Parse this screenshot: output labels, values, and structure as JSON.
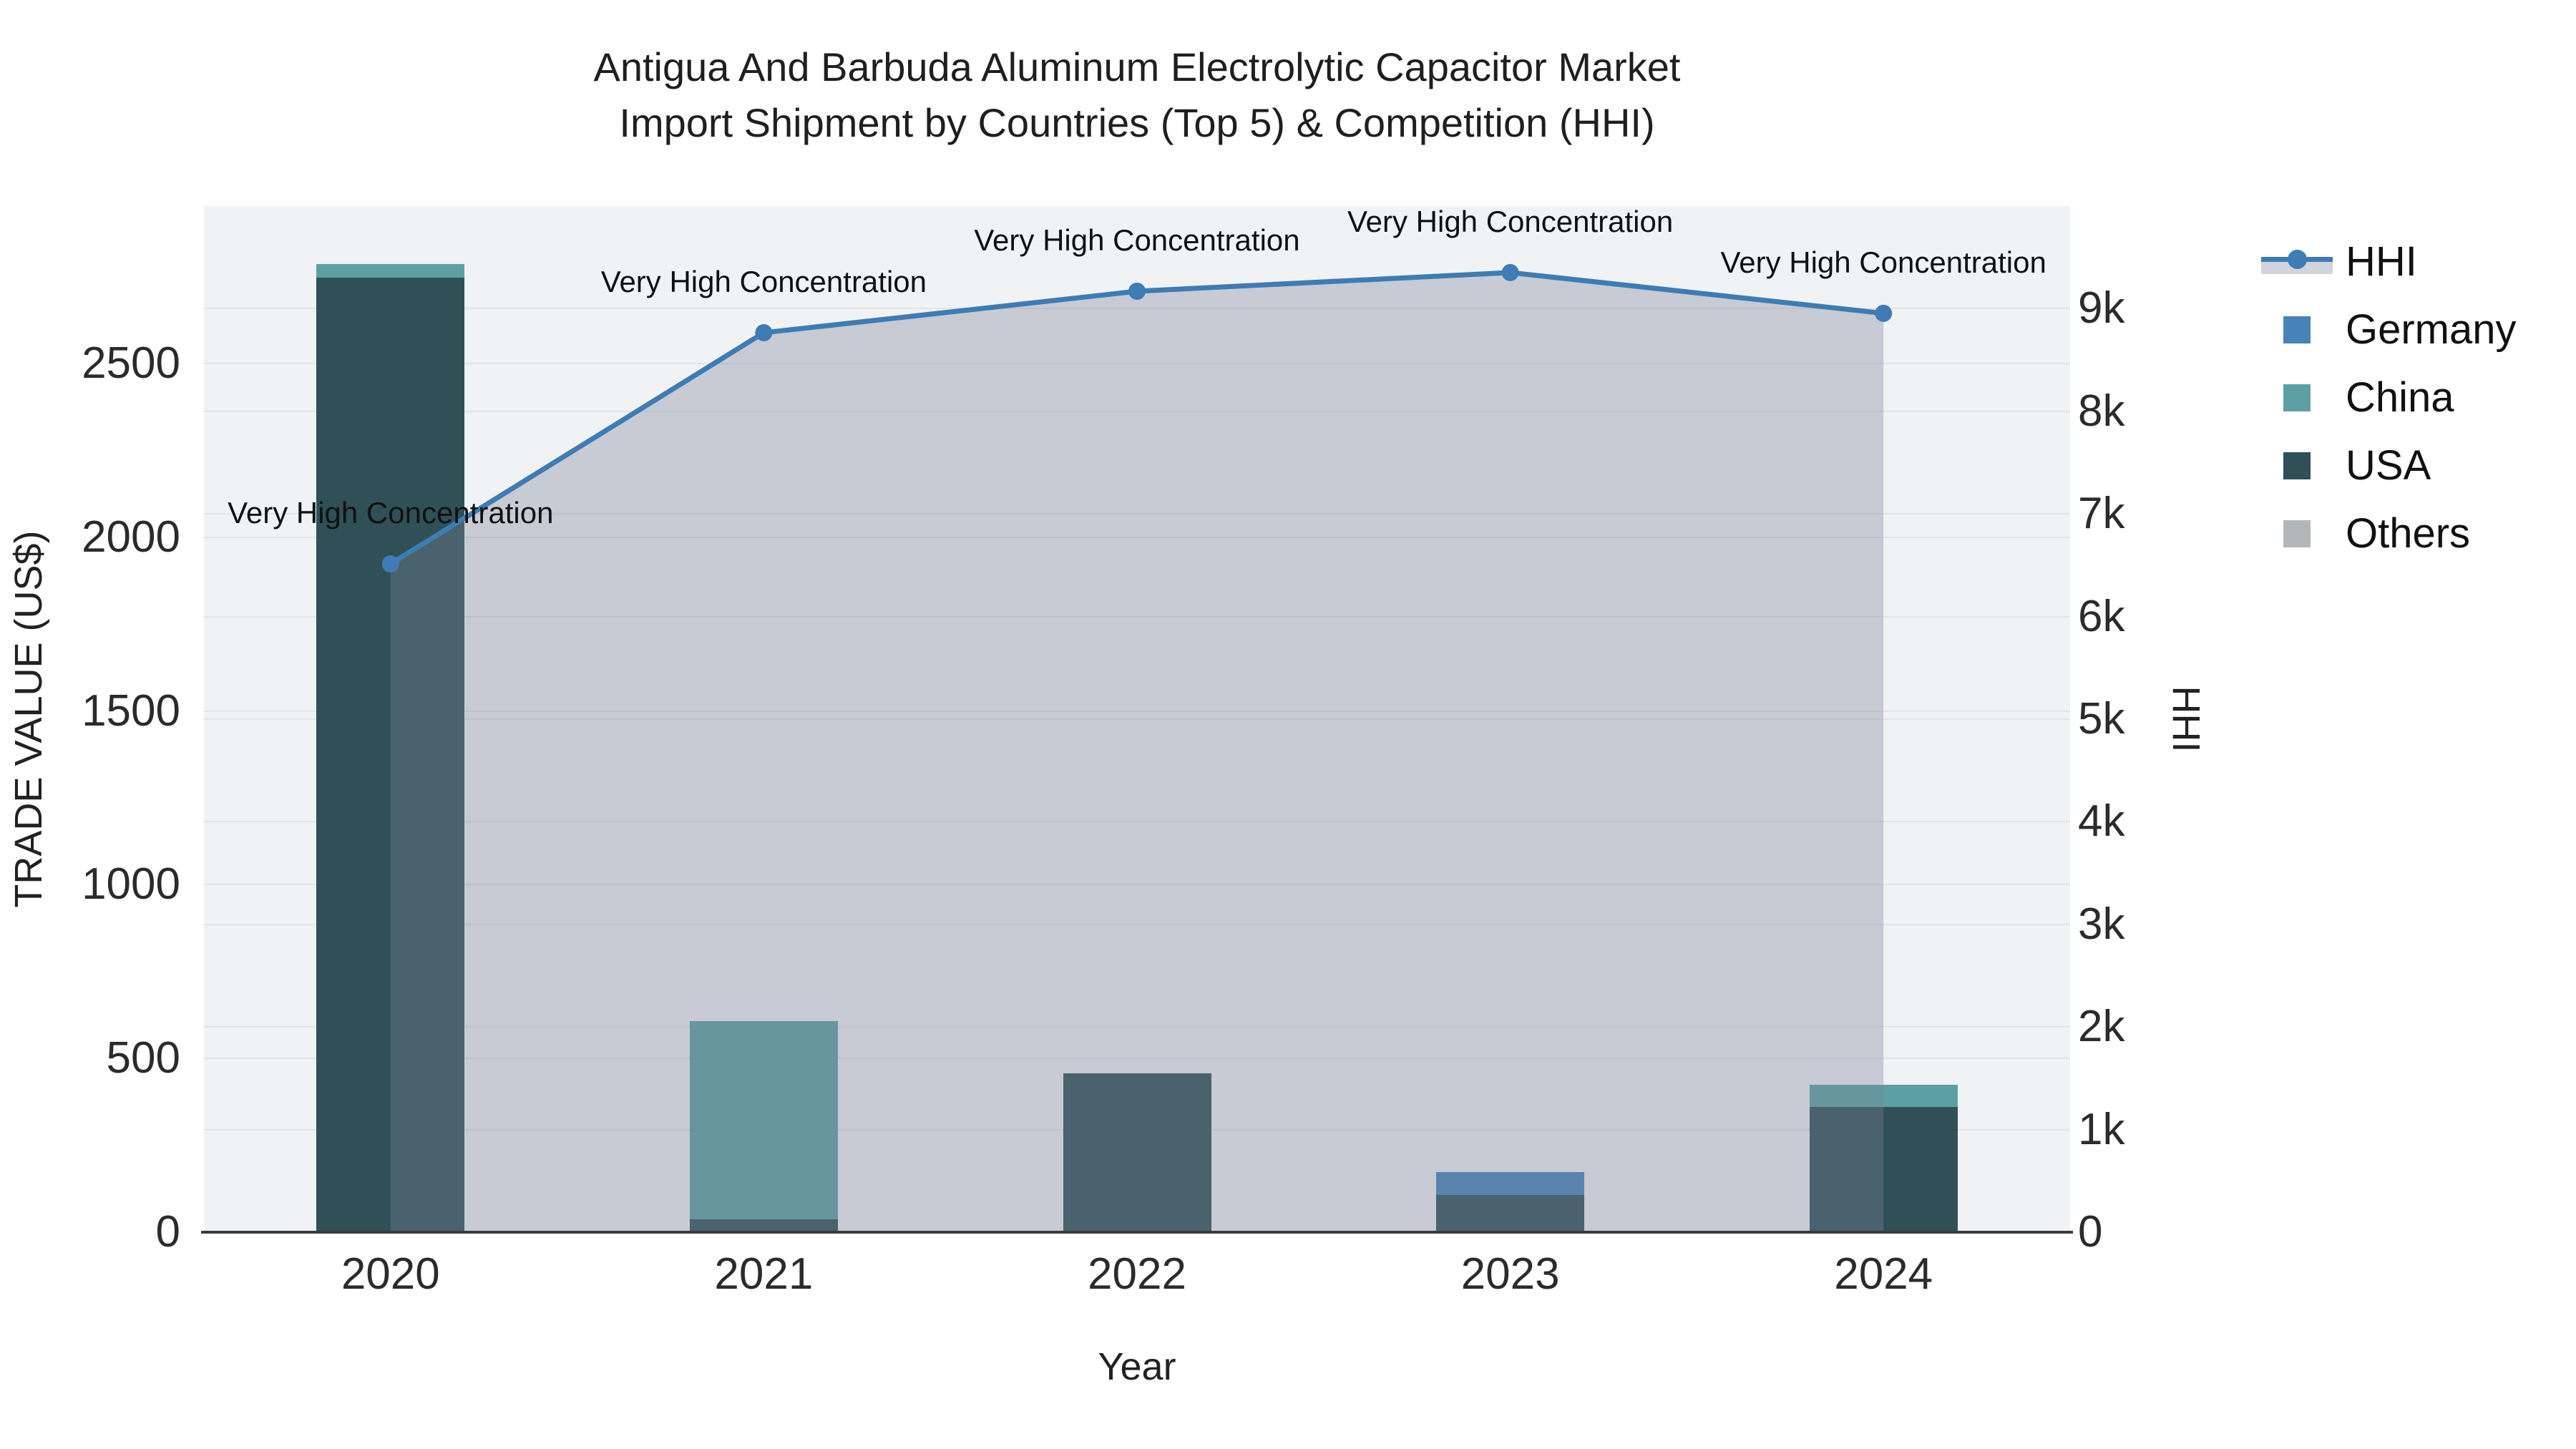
{
  "title": {
    "line1": "Antigua And Barbuda Aluminum Electrolytic Capacitor Market",
    "line2": "Import Shipment by Countries (Top 5) & Competition (HHI)"
  },
  "axes": {
    "x": {
      "title": "Year",
      "categories": [
        "2020",
        "2021",
        "2022",
        "2023",
        "2024"
      ]
    },
    "y_left": {
      "title": "TRADE VALUE (US$)",
      "ticks": [
        {
          "label": "0",
          "value": 0
        },
        {
          "label": "500",
          "value": 500
        },
        {
          "label": "1000",
          "value": 1000
        },
        {
          "label": "1500",
          "value": 1500
        },
        {
          "label": "2000",
          "value": 2000
        },
        {
          "label": "2500",
          "value": 2500
        }
      ]
    },
    "y_right": {
      "title": "HHI",
      "ticks": [
        {
          "label": "0",
          "value": 0
        },
        {
          "label": "1k",
          "value": 1000
        },
        {
          "label": "2k",
          "value": 2000
        },
        {
          "label": "3k",
          "value": 3000
        },
        {
          "label": "4k",
          "value": 4000
        },
        {
          "label": "5k",
          "value": 5000
        },
        {
          "label": "6k",
          "value": 6000
        },
        {
          "label": "7k",
          "value": 7000
        },
        {
          "label": "8k",
          "value": 8000
        },
        {
          "label": "9k",
          "value": 9000
        }
      ]
    }
  },
  "legend": {
    "items": [
      {
        "label": "HHI",
        "type": "line",
        "color": "#3d7cb5"
      },
      {
        "label": "Germany",
        "type": "swatch",
        "color": "#4783b8"
      },
      {
        "label": "China",
        "type": "swatch",
        "color": "#5ca0a3"
      },
      {
        "label": "USA",
        "type": "swatch",
        "color": "#2f5057"
      },
      {
        "label": "Others",
        "type": "swatch",
        "color": "#b4b7ba"
      }
    ]
  },
  "chart_data": {
    "type": "bar+line",
    "title": "Antigua And Barbuda Aluminum Electrolytic Capacitor Market Import Shipment by Countries (Top 5) & Competition (HHI)",
    "xlabel": "Year",
    "ylabel_left": "TRADE VALUE (US$)",
    "ylabel_right": "HHI",
    "categories": [
      "2020",
      "2021",
      "2022",
      "2023",
      "2024"
    ],
    "bar_mode": "stack",
    "stack_order": [
      "USA",
      "China",
      "Germany",
      "Others"
    ],
    "bar_series": [
      {
        "name": "Germany",
        "color": "#4783b8",
        "values": [
          0,
          0,
          0,
          66,
          0
        ]
      },
      {
        "name": "China",
        "color": "#5ca0a3",
        "values": [
          40,
          570,
          0,
          0,
          64
        ]
      },
      {
        "name": "USA",
        "color": "#2f5057",
        "values": [
          2747,
          37,
          457,
          107,
          360
        ]
      },
      {
        "name": "Others",
        "color": "#b4b7ba",
        "values": [
          0,
          0,
          0,
          0,
          0
        ]
      }
    ],
    "line_series": {
      "name": "HHI",
      "axis": "y_right",
      "color": "#3d7cb5",
      "fill_color": "rgba(122,131,153,0.35)",
      "values": [
        6513,
        8766,
        9170,
        9352,
        8955
      ]
    },
    "annotations": [
      {
        "category": "2020",
        "text": "Very High Concentration"
      },
      {
        "category": "2021",
        "text": "Very High Concentration"
      },
      {
        "category": "2022",
        "text": "Very High Concentration"
      },
      {
        "category": "2023",
        "text": "Very High Concentration"
      },
      {
        "category": "2024",
        "text": "Very High Concentration"
      }
    ],
    "y_left_range": [
      0,
      2953
    ],
    "y_right_range": [
      0,
      10000
    ],
    "grid": true,
    "legend_position": "right"
  }
}
